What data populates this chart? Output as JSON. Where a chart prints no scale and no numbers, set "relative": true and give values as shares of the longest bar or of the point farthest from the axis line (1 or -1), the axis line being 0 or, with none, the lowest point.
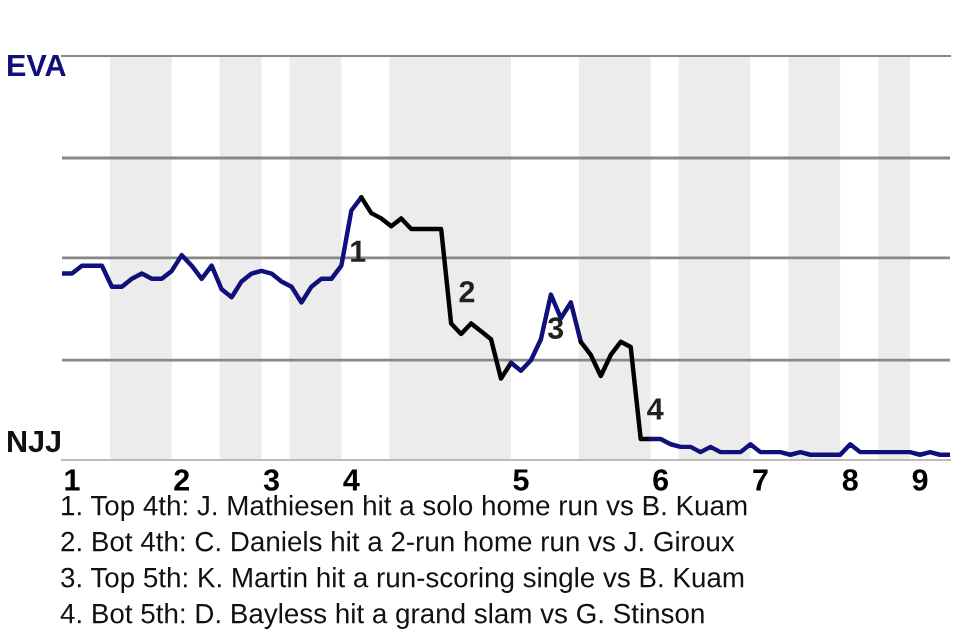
{
  "chart_data": {
    "type": "line",
    "relative": true,
    "categories": [
      null,
      "1",
      null,
      null,
      null,
      null,
      null,
      null,
      null,
      null,
      null,
      null,
      "2",
      null,
      null,
      null,
      null,
      null,
      null,
      null,
      null,
      "3",
      null,
      null,
      null,
      null,
      null,
      null,
      null,
      "4",
      null,
      null,
      null,
      null,
      null,
      null,
      null,
      null,
      null,
      null,
      null,
      null,
      null,
      null,
      null,
      null,
      "5",
      null,
      null,
      null,
      null,
      null,
      null,
      null,
      null,
      null,
      null,
      null,
      null,
      null,
      "6",
      null,
      null,
      null,
      null,
      null,
      null,
      null,
      null,
      null,
      "7",
      null,
      null,
      null,
      null,
      null,
      null,
      null,
      null,
      "8",
      null,
      null,
      null,
      null,
      null,
      null,
      "9",
      null,
      null,
      null
    ],
    "ref_lines": [
      {
        "axis": "y",
        "value": 0.38,
        "color": "#888888"
      },
      {
        "axis": "y",
        "value": 0.77,
        "color": "#888888"
      },
      {
        "axis": "y",
        "value": 1.15,
        "color": "#888888"
      }
    ],
    "legend": false,
    "marker": "none",
    "line_style": "solid",
    "series": [
      {
        "color": "#10107a",
        "values": [
          0.71,
          0.71,
          0.74,
          0.74,
          0.74,
          0.66,
          0.66,
          0.69,
          0.71,
          0.69,
          0.69,
          0.72,
          0.78,
          0.74,
          0.69,
          0.74,
          0.65,
          0.62,
          0.68,
          0.71,
          0.72,
          0.71,
          0.68,
          0.66,
          0.6,
          0.66,
          0.69,
          0.69,
          0.74,
          0.95,
          1,
          null,
          null,
          null,
          null,
          null,
          null,
          null,
          null,
          null,
          null,
          null,
          null,
          null,
          null,
          null,
          null,
          null,
          null,
          null,
          null,
          null,
          null,
          null,
          null,
          null,
          null,
          null,
          null,
          null,
          null,
          null,
          null,
          null,
          null,
          null,
          null,
          null,
          null,
          null,
          null,
          null,
          null,
          null,
          null,
          null,
          null,
          null,
          null,
          null,
          null,
          null,
          null,
          null,
          null,
          null,
          null,
          null,
          null,
          null
        ]
      },
      {
        "color": "#000000",
        "values": [
          null,
          null,
          null,
          null,
          null,
          null,
          null,
          null,
          null,
          null,
          null,
          null,
          null,
          null,
          null,
          null,
          null,
          null,
          null,
          null,
          null,
          null,
          null,
          null,
          null,
          null,
          null,
          null,
          null,
          null,
          1,
          0.94,
          0.92,
          0.89,
          0.92,
          0.88,
          0.88,
          0.88,
          0.88,
          0.52,
          0.48,
          0.52,
          0.49,
          0.46,
          0.31,
          0.37,
          null,
          null,
          null,
          null,
          null,
          null,
          null,
          null,
          null,
          null,
          null,
          null,
          null,
          null,
          null,
          null,
          null,
          null,
          null,
          null,
          null,
          null,
          null,
          null,
          null,
          null,
          null,
          null,
          null,
          null,
          null,
          null,
          null,
          null,
          null,
          null,
          null,
          null,
          null,
          null,
          null,
          null,
          null,
          null
        ]
      },
      {
        "color": "#10107a",
        "values": [
          null,
          null,
          null,
          null,
          null,
          null,
          null,
          null,
          null,
          null,
          null,
          null,
          null,
          null,
          null,
          null,
          null,
          null,
          null,
          null,
          null,
          null,
          null,
          null,
          null,
          null,
          null,
          null,
          null,
          null,
          null,
          null,
          null,
          null,
          null,
          null,
          null,
          null,
          null,
          null,
          null,
          null,
          null,
          null,
          null,
          0.37,
          0.34,
          0.38,
          0.46,
          0.63,
          0.54,
          0.6,
          0.45,
          null,
          null,
          null,
          null,
          null,
          null,
          null,
          null,
          null,
          null,
          null,
          null,
          null,
          null,
          null,
          null,
          null,
          null,
          null,
          null,
          null,
          null,
          null,
          null,
          null,
          null,
          null,
          null,
          null,
          null,
          null,
          null,
          null,
          null,
          null,
          null,
          null
        ]
      },
      {
        "color": "#000000",
        "values": [
          null,
          null,
          null,
          null,
          null,
          null,
          null,
          null,
          null,
          null,
          null,
          null,
          null,
          null,
          null,
          null,
          null,
          null,
          null,
          null,
          null,
          null,
          null,
          null,
          null,
          null,
          null,
          null,
          null,
          null,
          null,
          null,
          null,
          null,
          null,
          null,
          null,
          null,
          null,
          null,
          null,
          null,
          null,
          null,
          null,
          null,
          null,
          null,
          null,
          null,
          null,
          null,
          0.45,
          0.4,
          0.32,
          0.4,
          0.45,
          0.43,
          0.08,
          0.08,
          null,
          null,
          null,
          null,
          null,
          null,
          null,
          null,
          null,
          null,
          null,
          null,
          null,
          null,
          null,
          null,
          null,
          null,
          null,
          null,
          null,
          null,
          null,
          null,
          null,
          null,
          null,
          null,
          null,
          null
        ]
      },
      {
        "color": "#10107a",
        "values": [
          null,
          null,
          null,
          null,
          null,
          null,
          null,
          null,
          null,
          null,
          null,
          null,
          null,
          null,
          null,
          null,
          null,
          null,
          null,
          null,
          null,
          null,
          null,
          null,
          null,
          null,
          null,
          null,
          null,
          null,
          null,
          null,
          null,
          null,
          null,
          null,
          null,
          null,
          null,
          null,
          null,
          null,
          null,
          null,
          null,
          null,
          null,
          null,
          null,
          null,
          null,
          null,
          null,
          null,
          null,
          null,
          null,
          null,
          null,
          0.08,
          0.08,
          0.06,
          0.05,
          0.05,
          0.03,
          0.05,
          0.03,
          0.03,
          0.03,
          0.06,
          0.03,
          0.03,
          0.03,
          0.02,
          0.03,
          0.02,
          0.02,
          0.02,
          0.02,
          0.06,
          0.03,
          0.03,
          0.03,
          0.03,
          0.03,
          0.03,
          0.02,
          0.03,
          0.02,
          0.02
        ]
      }
    ],
    "annotations": [
      "1",
      "2",
      "3",
      "4",
      "EVA",
      "NJJ",
      "1. Top 4th: J. Mathiesen hit a solo home run vs B. Kuam",
      "2. Bot 4th: C. Daniels hit a 2-run home run vs J. Giroux",
      "3. Top 5th: K. Martin hit a run-scoring single vs B. Kuam",
      "4. Bot 5th: D. Bayless hit a grand slam vs G. Stinson"
    ]
  }
}
